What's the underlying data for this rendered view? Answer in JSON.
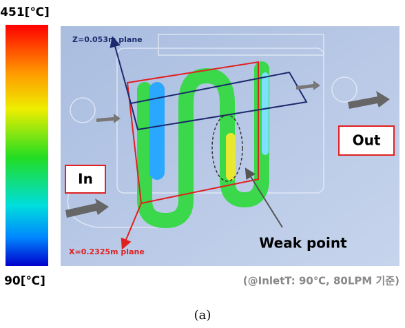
{
  "colorbar": {
    "max_label": "451[℃]",
    "min_label": "90[℃]"
  },
  "figure": {
    "z_plane": "Z=0.053m plane",
    "x_plane": "X=0.2325m plane",
    "inlet": "In",
    "outlet": "Out",
    "weak_point": "Weak point",
    "condition": "(@InletT: 90℃, 80LPM 기준)"
  },
  "caption": "(a)"
}
